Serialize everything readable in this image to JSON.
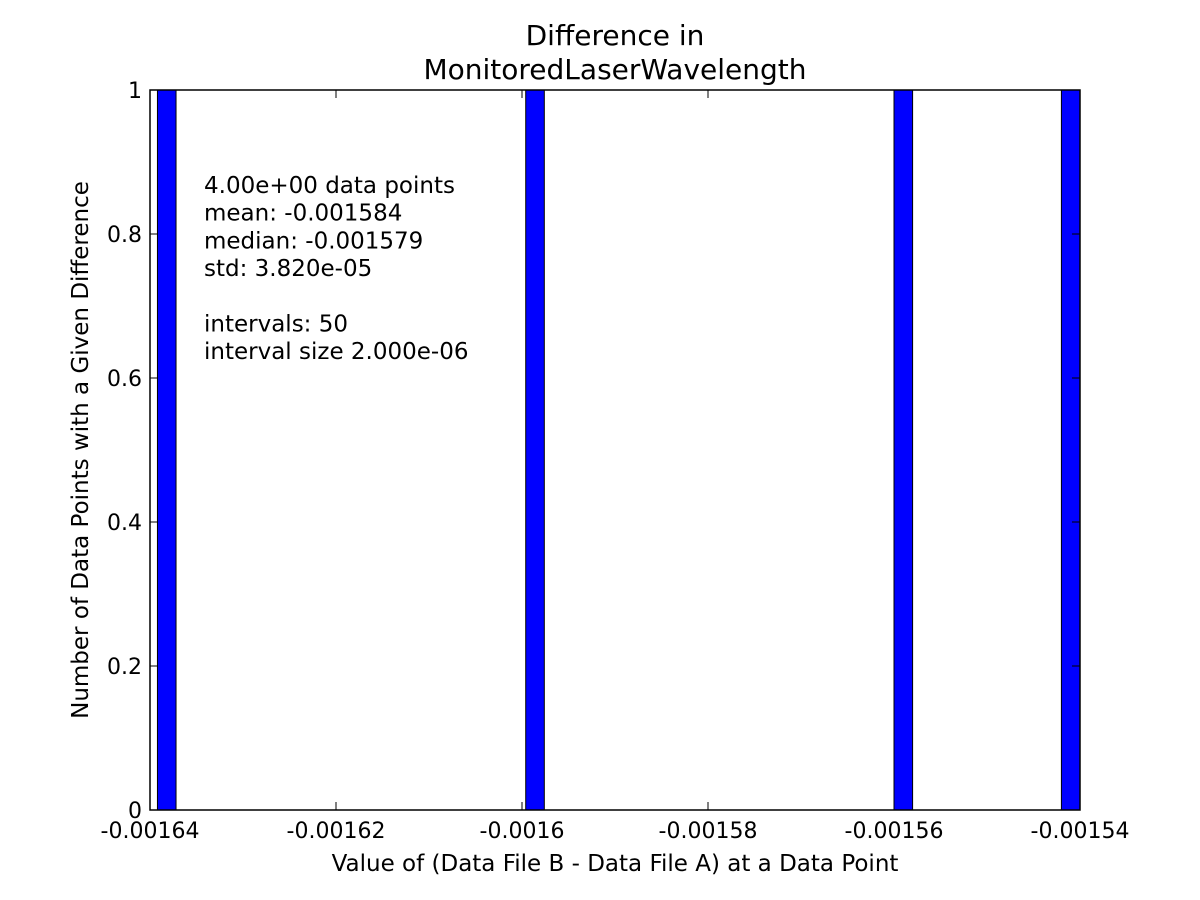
{
  "chart_data": {
    "type": "bar",
    "title_lines": [
      "Difference in",
      "MonitoredLaserWavelength"
    ],
    "xlabel": "Value of (Data File B - Data File A) at a Data Point",
    "ylabel": "Number of Data Points with a Given Difference",
    "xlim": [
      -0.00164,
      -0.00154
    ],
    "ylim": [
      0,
      1
    ],
    "x_ticks": [
      -0.00164,
      -0.00162,
      -0.0016,
      -0.00158,
      -0.00156,
      -0.00154
    ],
    "x_tick_labels": [
      "-0.00164",
      "-0.00162",
      "-0.0016",
      "-0.00158",
      "-0.00156",
      "-0.00154"
    ],
    "y_ticks": [
      0,
      0.2,
      0.4,
      0.6,
      0.8,
      1
    ],
    "y_tick_labels": [
      "0",
      "0.2",
      "0.4",
      "0.6",
      "0.8",
      "1"
    ],
    "bin_width": 2e-06,
    "bars": [
      {
        "x_start": -0.0016392,
        "count": 1
      },
      {
        "x_start": -0.0015996,
        "count": 1
      },
      {
        "x_start": -0.00156,
        "count": 1
      },
      {
        "x_start": -0.001542,
        "count": 1
      }
    ],
    "bar_color": "#0000ff",
    "grid": false
  },
  "stats": {
    "lines": [
      "4.00e+00 data points",
      "mean: -0.001584",
      "median: -0.001579",
      "std: 3.820e-05",
      "",
      "intervals: 50",
      "interval size 2.000e-06"
    ]
  }
}
